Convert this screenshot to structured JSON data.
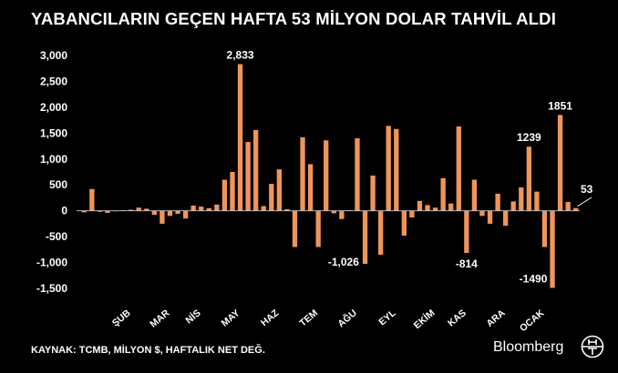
{
  "title": "YABANCILARIN GEÇEN HAFTA 53 MİLYON DOLAR TAHVİL ALDI",
  "footer": {
    "source": "KAYNAK: TCMB, MİLYON $, HAFTALIK NET DEĞ.",
    "brand": "Bloomberg",
    "brand_mark_letters": "HT"
  },
  "colors": {
    "background": "#000000",
    "bar": "#F0955A",
    "text": "#FFFFFF",
    "zero_line": "#C8C8C8"
  },
  "chart_data": {
    "type": "bar",
    "title": "YABANCILARIN GEÇEN HAFTA 53 MİLYON DOLAR TAHVİL ALDI",
    "xlabel": "",
    "ylabel": "",
    "ylim": [
      -1500,
      3000
    ],
    "yticks": [
      3000,
      2500,
      2000,
      1500,
      1000,
      500,
      0,
      -500,
      -1000,
      -1500
    ],
    "ytick_labels": [
      "3,000",
      "2,500",
      "2,000",
      "1,500",
      "1,000",
      "500",
      "0",
      "-500",
      "-1,000",
      "-1,500"
    ],
    "month_labels": [
      {
        "label": "ŞUB",
        "index": 6
      },
      {
        "label": "MAR",
        "index": 11
      },
      {
        "label": "NİS",
        "index": 15
      },
      {
        "label": "MAY",
        "index": 20
      },
      {
        "label": "HAZ",
        "index": 25
      },
      {
        "label": "TEM",
        "index": 30
      },
      {
        "label": "AĞU",
        "index": 35
      },
      {
        "label": "EYL",
        "index": 40
      },
      {
        "label": "EKİM",
        "index": 45
      },
      {
        "label": "KAS",
        "index": 49
      },
      {
        "label": "ARA",
        "index": 54
      },
      {
        "label": "OCAK",
        "index": 59
      }
    ],
    "values": [
      -30,
      420,
      -20,
      -40,
      -10,
      10,
      20,
      60,
      40,
      -80,
      -250,
      -100,
      -60,
      -150,
      100,
      80,
      50,
      120,
      600,
      750,
      2833,
      1330,
      1560,
      90,
      520,
      800,
      30,
      -700,
      1420,
      900,
      -700,
      1360,
      -50,
      -160,
      10,
      1400,
      -1026,
      680,
      -850,
      1640,
      1580,
      -480,
      -130,
      190,
      110,
      60,
      630,
      140,
      1630,
      -814,
      600,
      -100,
      -250,
      330,
      -290,
      180,
      450,
      1239,
      370,
      -700,
      -1490,
      1851,
      170,
      53
    ],
    "annotations": [
      {
        "text": "2,833",
        "index": 20
      },
      {
        "text": "-1,026",
        "index": 36
      },
      {
        "text": "-814",
        "index": 49
      },
      {
        "text": "1239",
        "index": 57
      },
      {
        "text": "-1490",
        "index": 60
      },
      {
        "text": "1851",
        "index": 61
      },
      {
        "text": "53",
        "index": 63
      }
    ],
    "grid": false,
    "legend": "none"
  }
}
